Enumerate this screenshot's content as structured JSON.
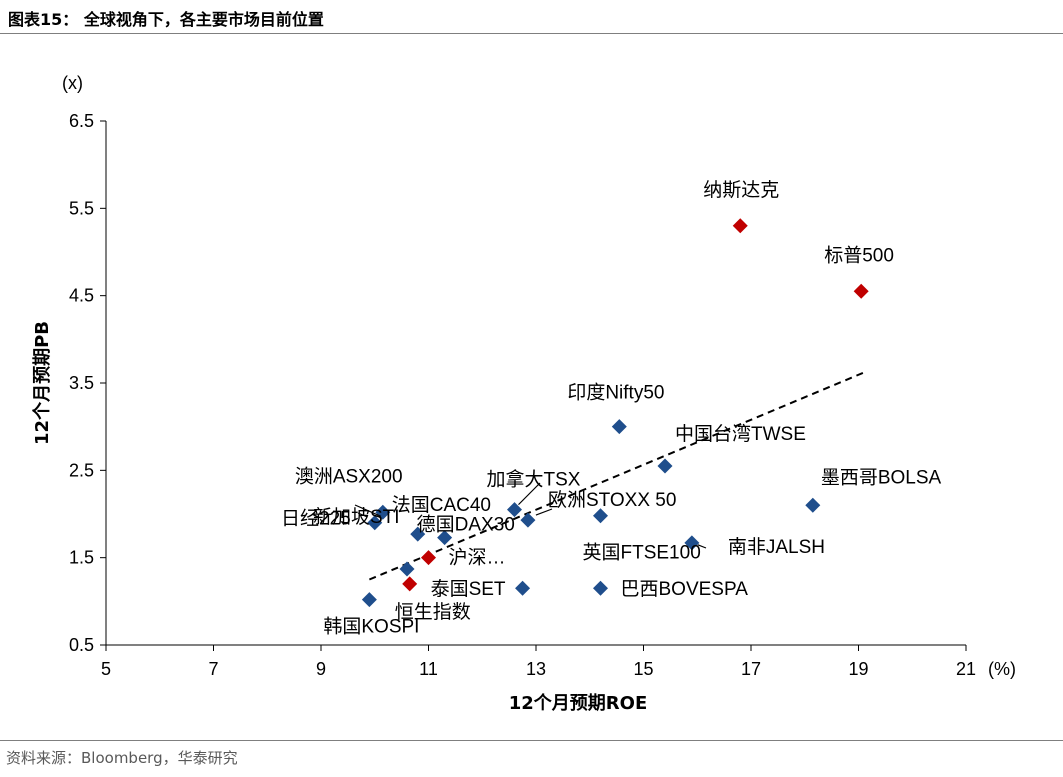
{
  "header": {
    "title": "图表15： 全球视角下，各主要市场目前位置"
  },
  "footer": {
    "source": "资料来源：Bloomberg，华泰研究"
  },
  "chart_data": {
    "type": "scatter",
    "xlabel": "12个月预期ROE",
    "ylabel": "12个月预期PB",
    "x_unit": "(%)",
    "y_unit": "(x)",
    "xlim": [
      5,
      21
    ],
    "ylim": [
      0.5,
      6.5
    ],
    "x_ticks": [
      "5",
      "7",
      "9",
      "11",
      "13",
      "15",
      "17",
      "19",
      "21"
    ],
    "y_ticks": [
      "0.5",
      "1.5",
      "2.5",
      "3.5",
      "4.5",
      "5.5",
      "6.5"
    ],
    "points": [
      {
        "label": "纳斯达克",
        "x": 16.8,
        "y": 5.3,
        "color": "#c00000"
      },
      {
        "label": "标普500",
        "x": 19.05,
        "y": 4.55,
        "color": "#c00000"
      },
      {
        "label": "沪深…",
        "x": 11.0,
        "y": 1.5,
        "color": "#c00000"
      },
      {
        "label": "恒生指数",
        "x": 10.65,
        "y": 1.2,
        "color": "#c00000"
      },
      {
        "label": "印度Nifty50",
        "x": 14.55,
        "y": 3.0,
        "color": "#1f4e8c"
      },
      {
        "label": "中国台湾TWSE",
        "x": 15.4,
        "y": 2.55,
        "color": "#1f4e8c"
      },
      {
        "label": "墨西哥BOLSA",
        "x": 18.15,
        "y": 2.1,
        "color": "#1f4e8c"
      },
      {
        "label": "加拿大TSX",
        "x": 12.6,
        "y": 2.05,
        "color": "#1f4e8c"
      },
      {
        "label": "欧洲STOXX 50",
        "x": 12.85,
        "y": 1.93,
        "color": "#1f4e8c"
      },
      {
        "label": "英国FTSE100",
        "x": 14.2,
        "y": 1.98,
        "color": "#1f4e8c"
      },
      {
        "label": "南非JALSH",
        "x": 15.9,
        "y": 1.67,
        "color": "#1f4e8c"
      },
      {
        "label": "澳洲ASX200",
        "x": 10.15,
        "y": 2.02,
        "color": "#1f4e8c"
      },
      {
        "label": "日经225",
        "x": 10.0,
        "y": 1.9,
        "color": "#1f4e8c"
      },
      {
        "label": "法国CAC40",
        "x": 10.8,
        "y": 1.77,
        "color": "#1f4e8c"
      },
      {
        "label": "德国DAX30",
        "x": 11.3,
        "y": 1.73,
        "color": "#1f4e8c"
      },
      {
        "label": "新加坡STI",
        "x": 10.6,
        "y": 1.37,
        "color": "#1f4e8c"
      },
      {
        "label": "泰国SET",
        "x": 12.75,
        "y": 1.15,
        "color": "#1f4e8c"
      },
      {
        "label": "巴西BOVESPA",
        "x": 14.2,
        "y": 1.15,
        "color": "#1f4e8c"
      },
      {
        "label": "韩国KOSPI",
        "x": 9.9,
        "y": 1.02,
        "color": "#1f4e8c"
      }
    ],
    "trendline": {
      "style": "dashed",
      "x": [
        9.9,
        19.1
      ],
      "y": [
        1.25,
        3.62
      ]
    }
  }
}
